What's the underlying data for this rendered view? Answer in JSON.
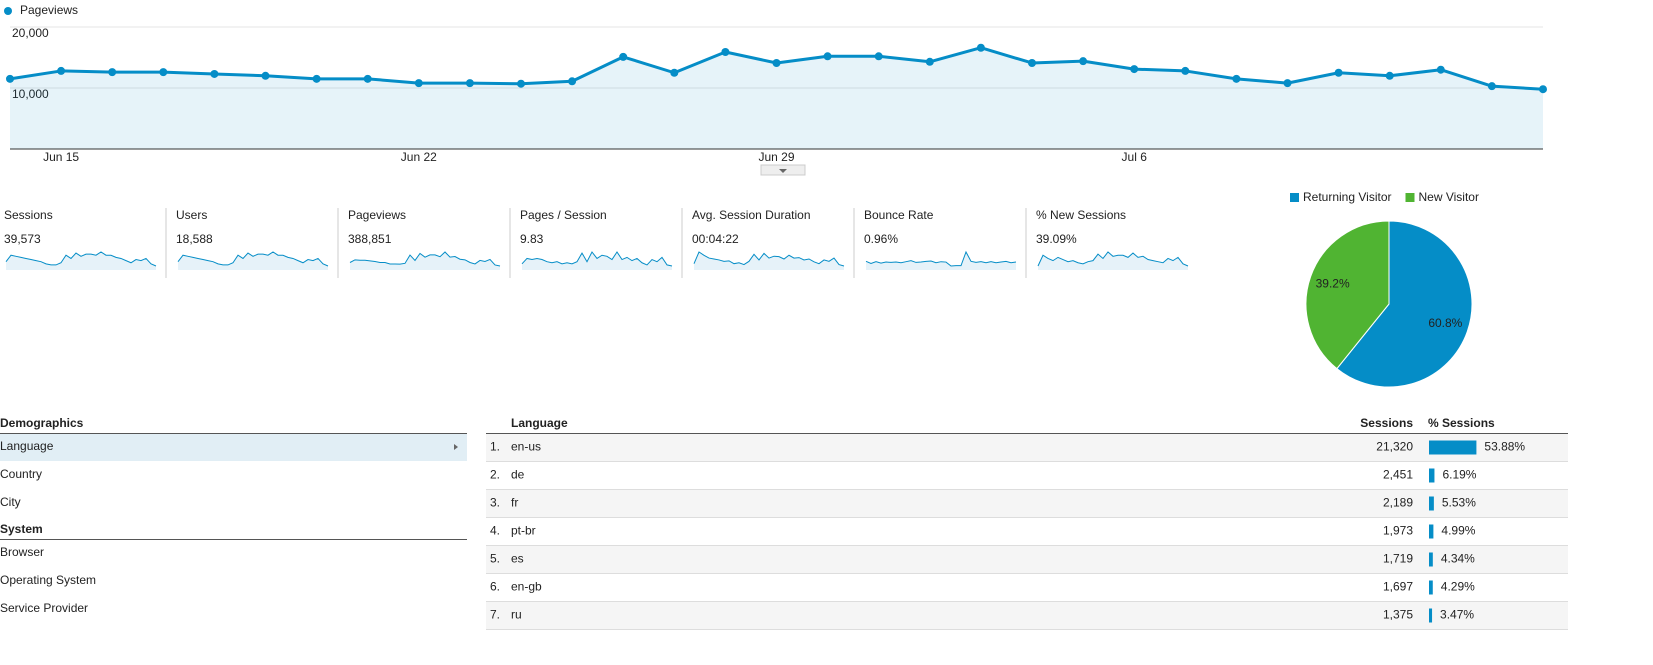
{
  "chart_data": [
    {
      "type": "line",
      "categories": [
        null,
        "Jun 15",
        null,
        null,
        null,
        null,
        null,
        null,
        "Jun 22",
        null,
        null,
        null,
        null,
        null,
        null,
        "Jun 29",
        null,
        null,
        null,
        null,
        null,
        null,
        "Jul 6",
        null,
        null,
        null,
        null,
        null,
        null,
        null,
        null
      ],
      "series": [
        {
          "name": "Pageviews",
          "color": "#058dc7",
          "values": [
            11500,
            12800,
            12600,
            12600,
            12300,
            12000,
            11500,
            11500,
            10800,
            10800,
            10700,
            11100,
            15100,
            12500,
            15900,
            14100,
            15200,
            15200,
            14300,
            16600,
            14100,
            14400,
            13100,
            12800,
            11500,
            10800,
            12500,
            12000,
            13000,
            10300,
            9800
          ]
        }
      ],
      "ylim": [
        0,
        20000
      ],
      "yticks": [
        {
          "value": 10000,
          "label": "10,000"
        },
        {
          "value": 20000,
          "label": "20,000"
        }
      ],
      "grid": true,
      "area": true
    },
    {
      "type": "pie",
      "categories": [
        "Returning Visitor",
        "New Visitor"
      ],
      "values": [
        60.8,
        39.2
      ],
      "value_labels": [
        "60.8%",
        "39.2%"
      ],
      "colors": [
        "#058dc7",
        "#50b432"
      ],
      "legend": "top"
    }
  ],
  "scorecards": [
    {
      "label": "Sessions",
      "value": "39,573",
      "sparkline": [
        1230,
        1290,
        1280,
        1270,
        1260,
        1250,
        1240,
        1230,
        1210,
        1200,
        1200,
        1220,
        1290,
        1260,
        1310,
        1280,
        1300,
        1300,
        1290,
        1320,
        1290,
        1290,
        1270,
        1260,
        1240,
        1220,
        1250,
        1240,
        1260,
        1210,
        1190
      ]
    },
    {
      "label": "Users",
      "value": "18,588",
      "sparkline": [
        580,
        610,
        605,
        600,
        595,
        590,
        585,
        580,
        570,
        565,
        565,
        575,
        610,
        595,
        620,
        605,
        615,
        615,
        610,
        625,
        610,
        610,
        600,
        595,
        585,
        575,
        590,
        585,
        595,
        570,
        560
      ]
    },
    {
      "label": "Pageviews",
      "value": "388,851",
      "sparkline": [
        11500,
        12800,
        12600,
        12600,
        12300,
        12000,
        11500,
        11500,
        10800,
        10800,
        10700,
        11100,
        15100,
        12500,
        15900,
        14100,
        15200,
        15200,
        14300,
        16600,
        14100,
        14400,
        13100,
        12800,
        11500,
        10800,
        12500,
        12000,
        13000,
        10300,
        9800
      ]
    },
    {
      "label": "Pages / Session",
      "value": "9.83",
      "sparkline": [
        9.4,
        9.9,
        9.8,
        9.9,
        9.8,
        9.6,
        9.5,
        9.6,
        9.4,
        9.5,
        9.4,
        9.6,
        10.4,
        9.6,
        10.5,
        9.9,
        10.2,
        10.1,
        9.8,
        10.5,
        9.8,
        10.0,
        9.7,
        9.9,
        9.5,
        9.3,
        9.8,
        9.6,
        10.0,
        9.3,
        9.2
      ]
    },
    {
      "label": "Avg. Session Duration",
      "value": "00:04:22",
      "sparkline": [
        250,
        275,
        268,
        262,
        260,
        258,
        255,
        256,
        250,
        252,
        248,
        255,
        270,
        258,
        272,
        262,
        266,
        265,
        260,
        268,
        262,
        263,
        258,
        260,
        254,
        250,
        258,
        255,
        262,
        248,
        245
      ]
    },
    {
      "label": "Bounce Rate",
      "value": "0.96%",
      "sparkline": [
        1.0,
        0.7,
        0.95,
        0.75,
        0.9,
        0.85,
        0.9,
        0.8,
        0.95,
        1.1,
        0.85,
        0.9,
        1.0,
        1.05,
        0.8,
        0.95,
        0.9,
        0.35,
        0.4,
        0.4,
        2.3,
        1.0,
        0.85,
        0.95,
        0.8,
        0.95,
        0.8,
        0.9,
        1.0,
        0.8,
        0.9
      ]
    },
    {
      "label": "% New Sessions",
      "value": "39.09%",
      "sparkline": [
        38.5,
        39.5,
        39.2,
        39.0,
        39.3,
        39.1,
        38.9,
        39.0,
        38.8,
        38.7,
        38.9,
        39.0,
        39.6,
        39.2,
        39.8,
        39.4,
        39.5,
        39.5,
        39.3,
        39.7,
        39.3,
        39.4,
        39.1,
        39.0,
        38.9,
        38.8,
        39.2,
        39.0,
        39.3,
        38.7,
        38.5
      ]
    }
  ],
  "navigation": {
    "sections": [
      {
        "title": "Demographics",
        "items": [
          "Language",
          "Country",
          "City"
        ]
      },
      {
        "title": "System",
        "items": [
          "Browser",
          "Operating System",
          "Service Provider"
        ]
      }
    ]
  },
  "table": {
    "columns": [
      "Language",
      "Sessions",
      "% Sessions"
    ],
    "rows": [
      {
        "rank": "1.",
        "language": "en-us",
        "sessions": "21,320",
        "percent": {
          "value": 53.88,
          "label": "53.88%"
        }
      },
      {
        "rank": "2.",
        "language": "de",
        "sessions": "2,451",
        "percent": {
          "value": 6.19,
          "label": "6.19%"
        }
      },
      {
        "rank": "3.",
        "language": "fr",
        "sessions": "2,189",
        "percent": {
          "value": 5.53,
          "label": "5.53%"
        }
      },
      {
        "rank": "4.",
        "language": "pt-br",
        "sessions": "1,973",
        "percent": {
          "value": 4.99,
          "label": "4.99%"
        }
      },
      {
        "rank": "5.",
        "language": "es",
        "sessions": "1,719",
        "percent": {
          "value": 4.34,
          "label": "4.34%"
        }
      },
      {
        "rank": "6.",
        "language": "en-gb",
        "sessions": "1,697",
        "percent": {
          "value": 4.29,
          "label": "4.29%"
        }
      },
      {
        "rank": "7.",
        "language": "ru",
        "sessions": "1,375",
        "percent": {
          "value": 3.47,
          "label": "3.47%"
        }
      }
    ]
  }
}
